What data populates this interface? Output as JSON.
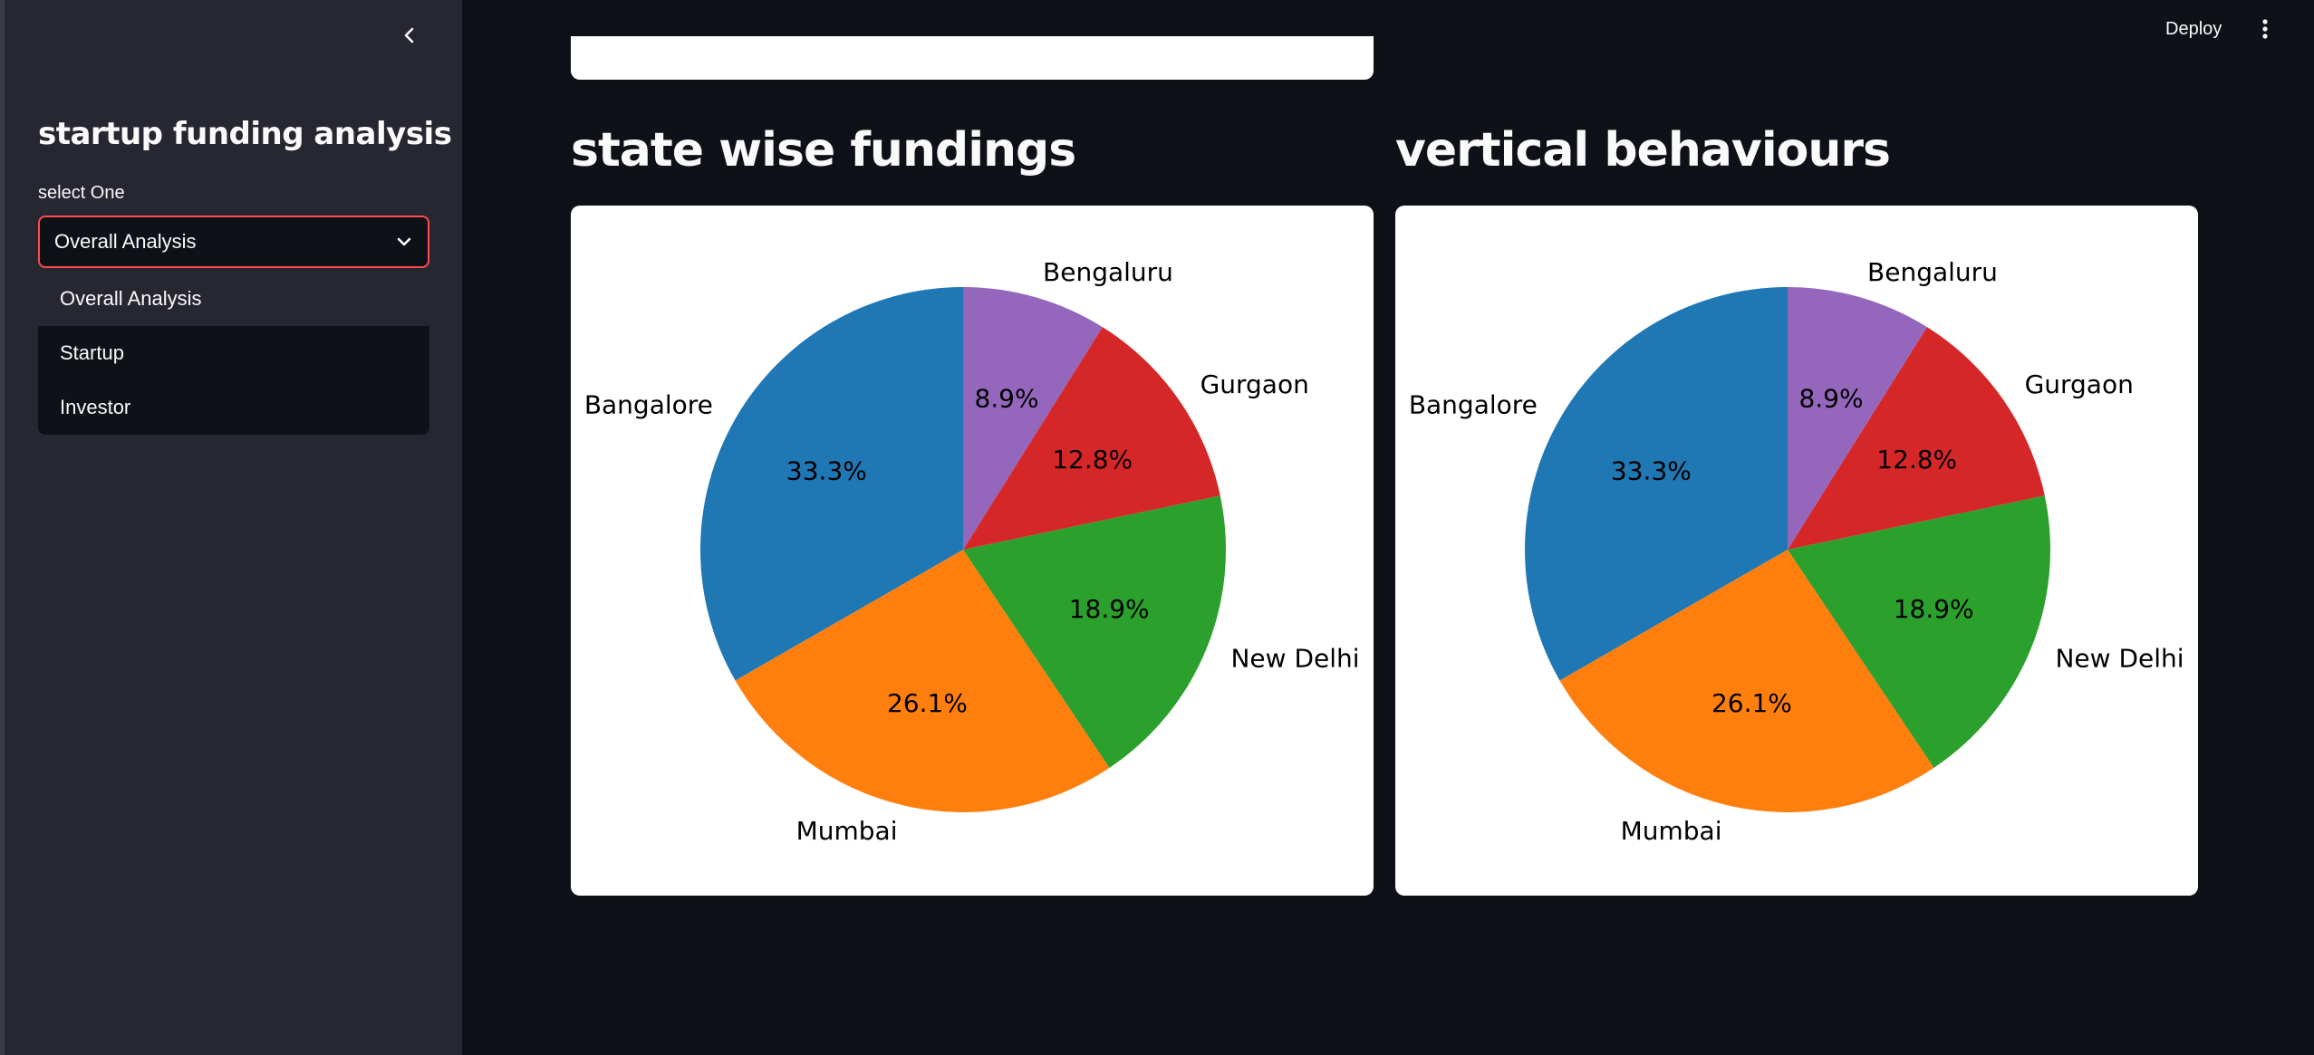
{
  "sidebar": {
    "title": "startup funding analysis",
    "select_label": "select One",
    "selected_value": "Overall Analysis",
    "options": [
      "Overall Analysis",
      "Startup",
      "Investor"
    ]
  },
  "header": {
    "deploy_label": "Deploy"
  },
  "main": {
    "sections": [
      {
        "title": "state wise fundings"
      },
      {
        "title": "vertical behaviours"
      }
    ]
  },
  "chart_data": [
    {
      "type": "pie",
      "labels": [
        "Bangalore",
        "Mumbai",
        "New Delhi",
        "Gurgaon",
        "Bengaluru"
      ],
      "values": [
        33.3,
        26.1,
        18.9,
        12.8,
        8.9
      ],
      "value_labels": [
        "33.3%",
        "26.1%",
        "18.9%",
        "12.8%",
        "8.9%"
      ],
      "colors": [
        "#1f77b4",
        "#ff7f0e",
        "#2ca02c",
        "#d62728",
        "#9467bd"
      ],
      "start_angle_deg": 90,
      "direction": "counterclockwise"
    },
    {
      "type": "pie",
      "labels": [
        "Bangalore",
        "Mumbai",
        "New Delhi",
        "Gurgaon",
        "Bengaluru"
      ],
      "values": [
        33.3,
        26.1,
        18.9,
        12.8,
        8.9
      ],
      "value_labels": [
        "33.3%",
        "26.1%",
        "18.9%",
        "12.8%",
        "8.9%"
      ],
      "colors": [
        "#1f77b4",
        "#ff7f0e",
        "#2ca02c",
        "#d62728",
        "#9467bd"
      ],
      "start_angle_deg": 90,
      "direction": "counterclockwise"
    }
  ]
}
